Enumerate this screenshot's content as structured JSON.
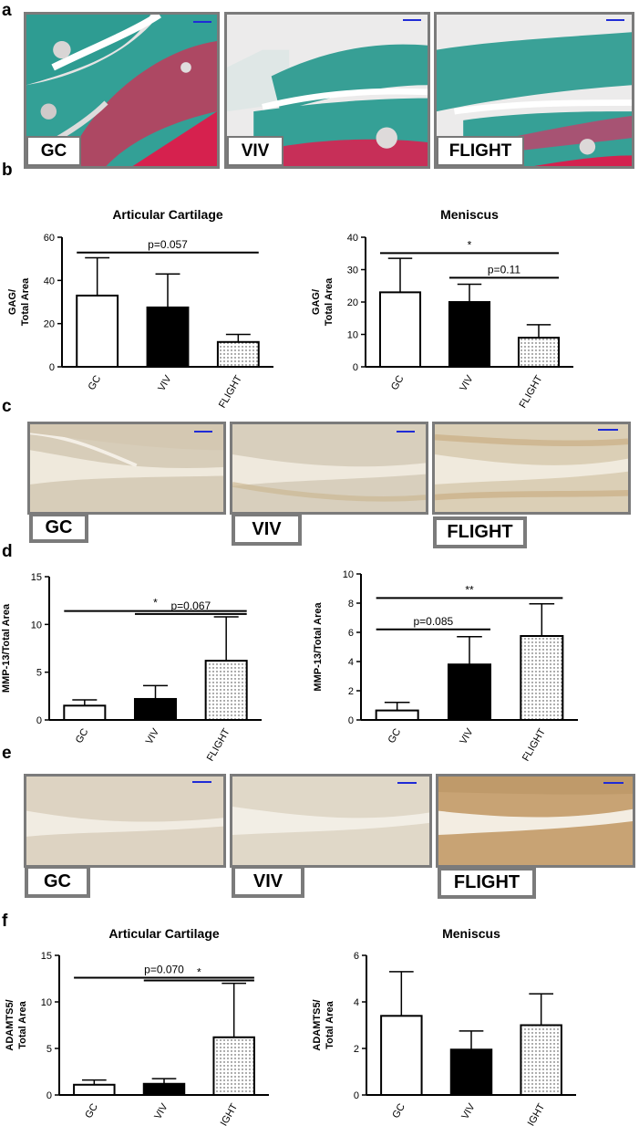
{
  "panels": {
    "a": "a",
    "b": "b",
    "c": "c",
    "d": "d",
    "e": "e",
    "f": "f"
  },
  "groups": [
    "GC",
    "VIV",
    "FLIGHT"
  ],
  "colors": {
    "frame": "#7b7b7b",
    "scale_bar": "#1f2bd6",
    "safranin_cartilage": "#c8345a",
    "fast_green": "#2f9e93",
    "ihc_background": "#d9cdb8",
    "ihc_stain_brown": "#b48b52",
    "bar_viv": "#000000",
    "bar_gc": "#ffffff"
  },
  "chart_data": [
    {
      "id": "b-left",
      "type": "bar",
      "title": "Articular Cartilage",
      "categories": [
        "GC",
        "VIV",
        "FLIGHT"
      ],
      "values": [
        33,
        27.5,
        11.5
      ],
      "errors": [
        17.5,
        15.5,
        3.5
      ],
      "ylabel": "GAG/\nTotal Area",
      "ylim": [
        0,
        60
      ],
      "yticks": [
        0,
        20,
        40,
        60
      ],
      "fills": [
        "white",
        "black",
        "dots"
      ],
      "annotations": [
        {
          "from": 0,
          "to": 2,
          "label": "p=0.057"
        }
      ]
    },
    {
      "id": "b-right",
      "type": "bar",
      "title": "Meniscus",
      "categories": [
        "GC",
        "VIV",
        "FLIGHT"
      ],
      "values": [
        23,
        20,
        9
      ],
      "errors": [
        10.5,
        5.5,
        4
      ],
      "ylabel": "GAG/\nTotal Area",
      "ylim": [
        0,
        40
      ],
      "yticks": [
        0,
        10,
        20,
        30,
        40
      ],
      "fills": [
        "white",
        "black",
        "dots"
      ],
      "annotations": [
        {
          "from": 0,
          "to": 2,
          "label": "*"
        },
        {
          "from": 1,
          "to": 2,
          "label": "p=0.11"
        }
      ]
    },
    {
      "id": "d-left",
      "type": "bar",
      "title": "",
      "categories": [
        "GC",
        "VIV",
        "FLIGHT"
      ],
      "values": [
        1.5,
        2.2,
        6.2
      ],
      "errors": [
        0.6,
        1.4,
        4.6
      ],
      "ylabel": "MMP-13/Total Area",
      "ylim": [
        0,
        15
      ],
      "yticks": [
        0,
        5,
        10,
        15
      ],
      "fills": [
        "white",
        "black",
        "dots"
      ],
      "annotations": [
        {
          "from": 0,
          "to": 2,
          "label": "*"
        },
        {
          "from": 1,
          "to": 2,
          "label": "p=0.067"
        }
      ]
    },
    {
      "id": "d-right",
      "type": "bar",
      "title": "",
      "categories": [
        "GC",
        "VIV",
        "FLIGHT"
      ],
      "values": [
        0.65,
        3.8,
        5.75
      ],
      "errors": [
        0.55,
        1.9,
        2.2
      ],
      "ylabel": "MMP-13/Total Area",
      "ylim": [
        0,
        10
      ],
      "yticks": [
        0,
        2,
        4,
        6,
        8,
        10
      ],
      "fills": [
        "white",
        "black",
        "dots"
      ],
      "annotations": [
        {
          "from": 0,
          "to": 2,
          "label": "**"
        },
        {
          "from": 0,
          "to": 1,
          "label": "p=0.085"
        }
      ]
    },
    {
      "id": "f-left",
      "type": "bar",
      "title": "Articular Cartilage",
      "categories": [
        "GC",
        "VIV",
        "FLIGHT"
      ],
      "values": [
        1.1,
        1.2,
        6.2
      ],
      "errors": [
        0.5,
        0.55,
        5.8
      ],
      "ylabel": "ADAMTS5/\nTotal Area",
      "ylim": [
        0,
        15
      ],
      "yticks": [
        0,
        5,
        10,
        15
      ],
      "fills": [
        "white",
        "black",
        "dots"
      ],
      "annotations": [
        {
          "from": 0,
          "to": 2,
          "label": "p=0.070"
        },
        {
          "from": 1,
          "to": 2,
          "label": "*"
        }
      ]
    },
    {
      "id": "f-right",
      "type": "bar",
      "title": "Meniscus",
      "categories": [
        "GC",
        "VIV",
        "FLIGHT"
      ],
      "values": [
        3.4,
        1.95,
        3.0
      ],
      "errors": [
        1.9,
        0.8,
        1.35
      ],
      "ylabel": "ADAMTS5/\nTotal Area",
      "ylim": [
        0,
        6
      ],
      "yticks": [
        0,
        2,
        4,
        6
      ],
      "fills": [
        "white",
        "black",
        "dots"
      ],
      "annotations": []
    }
  ]
}
